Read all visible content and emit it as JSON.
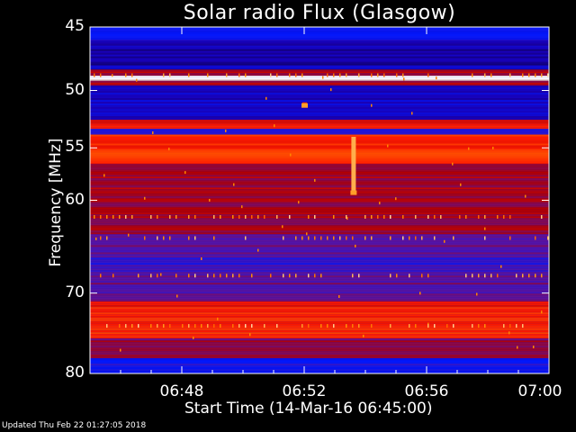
{
  "chart_data": {
    "type": "heatmap",
    "title": "Solar radio Flux (Glasgow)",
    "xlabel": "Start Time (14-Mar-16 06:45:00)",
    "ylabel": "Frequency [MHz]",
    "x_start": "06:45",
    "x_end": "07:00",
    "xlim_minutes": [
      45,
      60
    ],
    "ylim": [
      45,
      80
    ],
    "y_scale": "log",
    "y_ticks": [
      "45",
      "50",
      "55",
      "60",
      "70",
      "80"
    ],
    "y_tick_values": [
      45,
      50,
      55,
      60,
      70,
      80
    ],
    "x_ticks": [
      "06:48",
      "06:52",
      "06:56",
      "07:00"
    ],
    "x_tick_values": [
      48,
      52,
      56,
      60
    ],
    "colormap": [
      "#000000",
      "#1a00b4",
      "#0018ff",
      "#5a14a0",
      "#b40000",
      "#ff1a00",
      "#ff8c00",
      "#ffffff"
    ],
    "frequency_bands": [
      {
        "from": 45,
        "to": 46.0,
        "level": 0.3
      },
      {
        "from": 46.0,
        "to": 48.3,
        "level": 0.15
      },
      {
        "from": 48.3,
        "to": 48.8,
        "level": 0.55
      },
      {
        "from": 48.8,
        "to": 49.2,
        "level": 1.0
      },
      {
        "from": 49.2,
        "to": 49.6,
        "level": 0.55
      },
      {
        "from": 49.6,
        "to": 52.5,
        "level": 0.18
      },
      {
        "from": 52.5,
        "to": 53.3,
        "level": 0.7
      },
      {
        "from": 53.3,
        "to": 53.8,
        "level": 0.35
      },
      {
        "from": 53.8,
        "to": 56.5,
        "level": 0.72
      },
      {
        "from": 56.5,
        "to": 63.5,
        "level": 0.55
      },
      {
        "from": 63.5,
        "to": 66.0,
        "level": 0.45
      },
      {
        "from": 66.0,
        "to": 68.0,
        "level": 0.38
      },
      {
        "from": 68.0,
        "to": 71.0,
        "level": 0.45
      },
      {
        "from": 71.0,
        "to": 75.5,
        "level": 0.7
      },
      {
        "from": 75.5,
        "to": 78.0,
        "level": 0.5
      },
      {
        "from": 78.0,
        "to": 80,
        "level": 0.3
      }
    ],
    "bursts": [
      {
        "minute": 53.6,
        "freq_from": 54.0,
        "freq_to": 59.3,
        "level": 0.9
      },
      {
        "minute": 52.0,
        "freq_from": 51.0,
        "freq_to": 51.3,
        "level": 0.75
      }
    ]
  },
  "footer": "Updated Thu Feb 22 01:27:05 2018"
}
